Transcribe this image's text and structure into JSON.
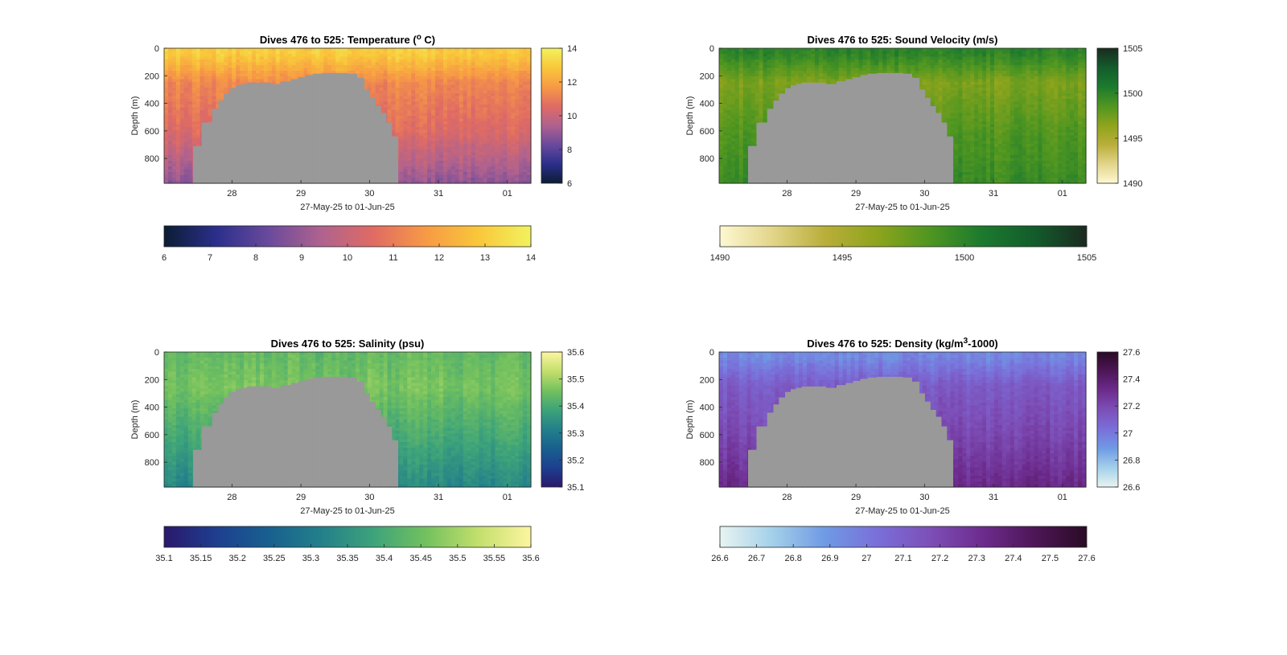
{
  "chart_data": [
    {
      "type": "heatmap",
      "title_main": "Dives 476 to 525: Temperature (",
      "title_sup": "o",
      "title_tail": " C)",
      "ylabel": "Depth (m)",
      "xlabel": "27-May-25 to 01-Jun-25",
      "x_ticks": [
        "28",
        "29",
        "30",
        "31",
        "01"
      ],
      "y_ticks": [
        "0",
        "200",
        "400",
        "600",
        "800"
      ],
      "colorbar_ticks": [
        "6",
        "8",
        "10",
        "12",
        "14"
      ],
      "hbar_ticks": [
        "6",
        "7",
        "8",
        "9",
        "10",
        "11",
        "12",
        "13",
        "14"
      ],
      "clim": [
        6,
        14
      ],
      "colormap": [
        "#0b1d33",
        "#2b2f8c",
        "#6a4a9c",
        "#b0628e",
        "#e06b63",
        "#f79a45",
        "#f9c73a",
        "#f2f25e"
      ],
      "profile": {
        "surface": 13.0,
        "upper": 11.3,
        "mid": 10.5,
        "deep": 8.9
      }
    },
    {
      "type": "heatmap",
      "title_main": "Dives 476 to 525: Sound Velocity (m/s)",
      "title_sup": "",
      "title_tail": "",
      "ylabel": "Depth (m)",
      "xlabel": "27-May-25 to 01-Jun-25",
      "x_ticks": [
        "28",
        "29",
        "30",
        "31",
        "01"
      ],
      "y_ticks": [
        "0",
        "200",
        "400",
        "600",
        "800"
      ],
      "colorbar_ticks": [
        "1490",
        "1495",
        "1500",
        "1505"
      ],
      "hbar_ticks": [
        "1490",
        "1495",
        "1500",
        "1505"
      ],
      "clim": [
        1490,
        1505
      ],
      "colormap": [
        "#fdf8d2",
        "#e2d58a",
        "#b9ae3a",
        "#8ea41c",
        "#4f9621",
        "#1c7a2e",
        "#135c2c",
        "#1b2a1f"
      ],
      "profile": {
        "surface": 1500.0,
        "upper": 1497.0,
        "mid": 1498.5,
        "deep": 1499.5
      }
    },
    {
      "type": "heatmap",
      "title_main": "Dives 476 to 525: Salinity (psu)",
      "title_sup": "",
      "title_tail": "",
      "ylabel": "Depth (m)",
      "xlabel": "27-May-25 to 01-Jun-25",
      "x_ticks": [
        "28",
        "29",
        "30",
        "31",
        "01"
      ],
      "y_ticks": [
        "0",
        "200",
        "400",
        "600",
        "800"
      ],
      "colorbar_ticks": [
        "35.1",
        "35.2",
        "35.3",
        "35.4",
        "35.5",
        "35.6"
      ],
      "hbar_ticks": [
        "35.1",
        "35.15",
        "35.2",
        "35.25",
        "35.3",
        "35.35",
        "35.4",
        "35.45",
        "35.5",
        "35.55",
        "35.6"
      ],
      "clim": [
        35.1,
        35.6
      ],
      "colormap": [
        "#2a186c",
        "#1e3f8f",
        "#18608f",
        "#23808a",
        "#3da37a",
        "#73c15e",
        "#c3df6c",
        "#fdf5a0"
      ],
      "profile": {
        "surface": 35.44,
        "upper": 35.46,
        "mid": 35.4,
        "deep": 35.33
      }
    },
    {
      "type": "heatmap",
      "title_main": "Dives 476 to 525: Density (kg/m",
      "title_sup": "3",
      "title_tail": "-1000)",
      "ylabel": "Depth (m)",
      "xlabel": "27-May-25 to 01-Jun-25",
      "x_ticks": [
        "28",
        "29",
        "30",
        "31",
        "01"
      ],
      "y_ticks": [
        "0",
        "200",
        "400",
        "600",
        "800"
      ],
      "colorbar_ticks": [
        "26.6",
        "26.8",
        "27",
        "27.2",
        "27.4",
        "27.6"
      ],
      "hbar_ticks": [
        "26.6",
        "26.7",
        "26.8",
        "26.9",
        "27",
        "27.1",
        "27.2",
        "27.3",
        "27.4",
        "27.5",
        "27.6"
      ],
      "clim": [
        26.6,
        27.6
      ],
      "colormap": [
        "#e8f4f1",
        "#a4d0ea",
        "#6f9ae4",
        "#7a6fd9",
        "#7d4fb8",
        "#6d2c8e",
        "#4e1657",
        "#2a0b25"
      ],
      "profile": {
        "surface": 26.95,
        "upper": 27.12,
        "mid": 27.2,
        "deep": 27.33
      }
    }
  ]
}
